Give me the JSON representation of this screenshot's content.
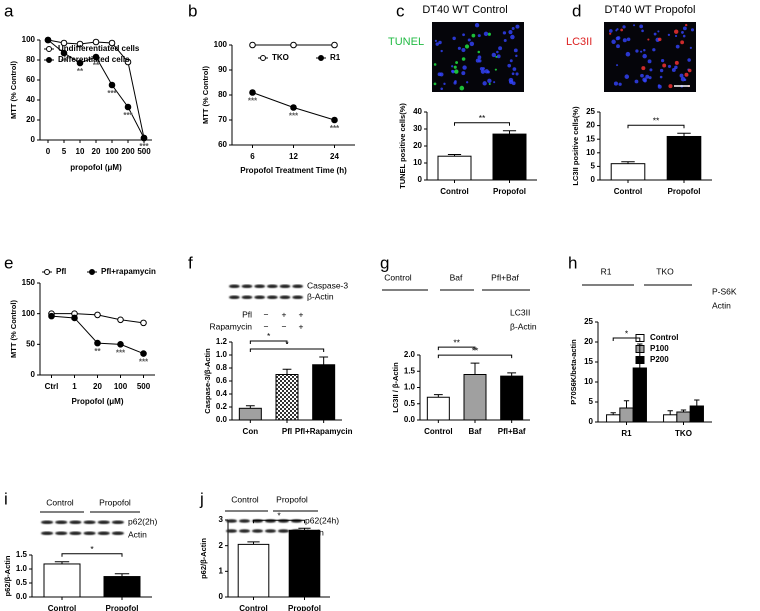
{
  "chart_data": [
    {
      "panel": "a",
      "type": "line",
      "categories": [
        "0",
        "5",
        "10",
        "20",
        "100",
        "200",
        "500"
      ],
      "xlabel": "propofol (μM)",
      "ylabel": "MTT (% Control)",
      "ylim": [
        0,
        100
      ],
      "yticks": [
        0,
        20,
        40,
        60,
        80,
        100
      ],
      "series": [
        {
          "name": "Undifferentiated cells",
          "color": "#000000",
          "marker": "open",
          "values": [
            100,
            97,
            96,
            98,
            97,
            78,
            2
          ]
        },
        {
          "name": "Differentiated cells",
          "color": "#000000",
          "marker": "filled",
          "values": [
            100,
            87,
            77,
            83,
            55,
            33,
            2
          ],
          "annotations": [
            null,
            "**",
            "**",
            "**",
            "***",
            "***",
            "***"
          ]
        }
      ]
    },
    {
      "panel": "b",
      "type": "line",
      "categories": [
        "6",
        "12",
        "24"
      ],
      "xlabel": "Propofol Treatment Time (h)",
      "ylabel": "MTT (% Control)",
      "ylim": [
        60,
        100
      ],
      "yticks": [
        60,
        70,
        80,
        90,
        100
      ],
      "series": [
        {
          "name": "TKO",
          "color": "#000000",
          "marker": "open",
          "values": [
            100,
            100,
            100
          ]
        },
        {
          "name": "R1",
          "color": "#000000",
          "marker": "filled",
          "values": [
            81,
            75,
            70
          ],
          "annotations": [
            "***",
            "***",
            "***"
          ]
        }
      ]
    },
    {
      "panel": "c",
      "type": "bar",
      "title": "DT40 WT Control",
      "image_label": "TUNEL",
      "image_label_color": "#22bb44",
      "image_colors": [
        "#3344ff",
        "#22ee44"
      ],
      "categories": [
        "Control",
        "Propofol"
      ],
      "values": [
        14,
        27
      ],
      "errors": [
        1,
        2
      ],
      "colors": [
        "#ffffff",
        "#000000"
      ],
      "ylabel": "TUNEL positive cells(%)",
      "ylim": [
        0,
        40
      ],
      "yticks": [
        0,
        10,
        20,
        30,
        40
      ],
      "significance": [
        "**"
      ]
    },
    {
      "panel": "d",
      "type": "bar",
      "title": "DT40 WT Propofol",
      "image_label": "LC3II",
      "image_label_color": "#dd2222",
      "image_colors": [
        "#3344ff",
        "#ff3333"
      ],
      "categories": [
        "Control",
        "Propofol"
      ],
      "values": [
        6,
        16
      ],
      "errors": [
        0.7,
        1.2
      ],
      "colors": [
        "#ffffff",
        "#000000"
      ],
      "ylabel": "LC3II positive cells(%)",
      "ylim": [
        0,
        25
      ],
      "yticks": [
        0,
        5,
        10,
        15,
        20,
        25
      ],
      "significance": [
        "**"
      ]
    },
    {
      "panel": "e",
      "type": "line",
      "categories": [
        "Ctrl",
        "1",
        "20",
        "100",
        "500"
      ],
      "xlabel": "Propofol (μM)",
      "ylabel": "MTT (% Control)",
      "ylim": [
        0,
        150
      ],
      "yticks": [
        0,
        50,
        100,
        150
      ],
      "series": [
        {
          "name": "Pfl",
          "color": "#000000",
          "marker": "open",
          "values": [
            100,
            100,
            98,
            90,
            85
          ]
        },
        {
          "name": "Pfl+rapamycin",
          "color": "#000000",
          "marker": "filled",
          "values": [
            96,
            93,
            52,
            50,
            35
          ],
          "annotations": [
            null,
            null,
            "**",
            "***",
            "***"
          ]
        }
      ]
    },
    {
      "panel": "f",
      "type": "bar",
      "blot_labels": [
        "Caspase-3",
        "β-Actin"
      ],
      "treatments": [
        {
          "name": "Pfl",
          "signs": [
            "−",
            "+",
            "+"
          ]
        },
        {
          "name": "Rapamycin",
          "signs": [
            "−",
            "−",
            "+"
          ]
        }
      ],
      "categories": [
        "Con",
        "Pfl",
        "Pfl+Rapamycin"
      ],
      "values": [
        0.18,
        0.7,
        0.85
      ],
      "errors": [
        0.04,
        0.08,
        0.12
      ],
      "colors": [
        "#a0a0a0",
        "#555555",
        "#000000"
      ],
      "patterns": [
        "solid",
        "checkered",
        "solid"
      ],
      "ylabel": "Caspase-3/β-Actin",
      "ylim": [
        0,
        1.2
      ],
      "yticks": [
        {
          "value": 0,
          "label": "0.0"
        },
        0.2,
        0.4,
        0.6,
        0.8,
        {
          "value": 1,
          "label": "1.0"
        },
        1.2
      ],
      "significance": [
        "*",
        "*"
      ]
    },
    {
      "panel": "g",
      "type": "bar",
      "header_labels": [
        "Control",
        "Baf",
        "Pfl+Baf"
      ],
      "blot_labels": [
        "LC3II",
        "β-Actin"
      ],
      "categories": [
        "Control",
        "Baf",
        "Pfl+Baf"
      ],
      "values": [
        0.7,
        1.4,
        1.35
      ],
      "errors": [
        0.08,
        0.35,
        0.1
      ],
      "colors": [
        "#ffffff",
        "#a0a0a0",
        "#000000"
      ],
      "ylabel": "LC3II / β-Actin",
      "ylim": [
        0,
        2
      ],
      "yticks": [
        {
          "value": 0,
          "label": "0.0"
        },
        0.5,
        {
          "value": 1,
          "label": "1.0"
        },
        1.5,
        {
          "value": 2,
          "label": "2.0"
        }
      ],
      "significance": [
        "**",
        "**"
      ]
    },
    {
      "panel": "h",
      "type": "bar",
      "header_labels": [
        "R1",
        "TKO"
      ],
      "blot_labels": [
        "P-S6K",
        "Actin"
      ],
      "categories": [
        "R1",
        "TKO"
      ],
      "ylabel": "P70S6K/beta-actin",
      "ylim": [
        0,
        25
      ],
      "yticks": [
        0,
        5,
        10,
        15,
        20,
        25
      ],
      "significance": [
        "*"
      ],
      "series": [
        {
          "name": "Control",
          "color": "#ffffff",
          "values": [
            1.8,
            1.8
          ],
          "errors": [
            0.5,
            1
          ]
        },
        {
          "name": "P100",
          "color": "#a0a0a0",
          "values": [
            3.5,
            2.5
          ],
          "errors": [
            1.8,
            0.5
          ]
        },
        {
          "name": "P200",
          "color": "#000000",
          "values": [
            13.5,
            4
          ],
          "errors": [
            6,
            1.5
          ]
        }
      ]
    },
    {
      "panel": "i",
      "type": "bar",
      "header_labels": [
        "Control",
        "Propofol"
      ],
      "blot_labels": [
        "p62(2h)",
        "Actin"
      ],
      "categories": [
        "Control",
        "Propofol"
      ],
      "values": [
        1.18,
        0.73
      ],
      "errors": [
        0.08,
        0.1
      ],
      "colors": [
        "#ffffff",
        "#000000"
      ],
      "ylabel": "p62/β-Actin",
      "ylim": [
        0,
        1.5
      ],
      "yticks": [
        {
          "value": 0,
          "label": "0.0"
        },
        0.5,
        {
          "value": 1,
          "label": "1.0"
        },
        1.5
      ],
      "significance": [
        "*"
      ]
    },
    {
      "panel": "j",
      "type": "bar",
      "header_labels": [
        "Control",
        "Propofol"
      ],
      "blot_labels": [
        "p62(24h)",
        "Actin"
      ],
      "categories": [
        "Control",
        "Propofol"
      ],
      "values": [
        2.05,
        2.6
      ],
      "errors": [
        0.1,
        0.08
      ],
      "colors": [
        "#ffffff",
        "#000000"
      ],
      "ylabel": "p62/β-Actin",
      "ylim": [
        0,
        3
      ],
      "yticks": [
        0,
        1,
        2,
        3
      ],
      "significance": [
        "*"
      ]
    }
  ]
}
